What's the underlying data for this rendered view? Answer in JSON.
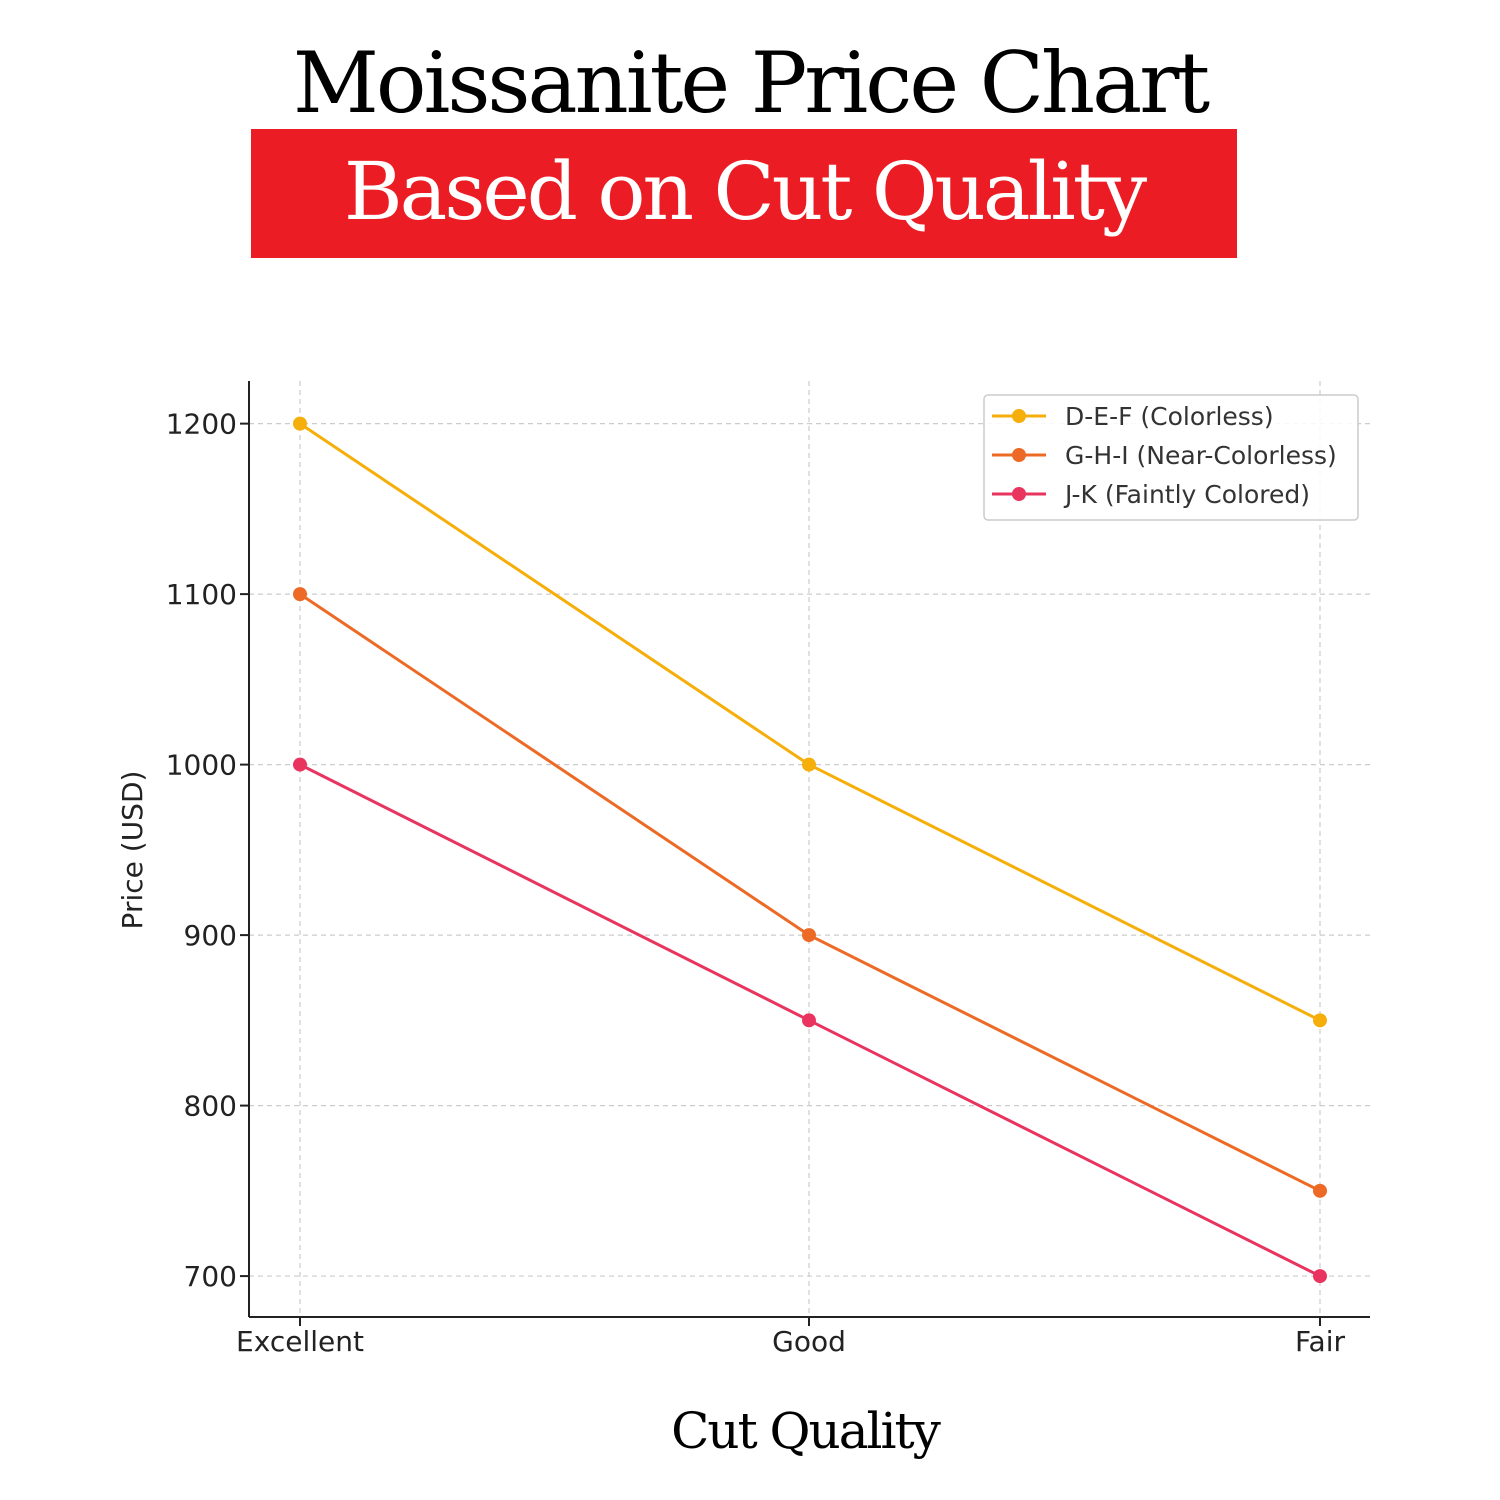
{
  "chart_data": {
    "type": "line",
    "title": "Moissanite Price Chart",
    "subtitle": "Based on Cut Quality",
    "xlabel": "Cut Quality",
    "ylabel": "Price (USD)",
    "categories": [
      "Excellent",
      "Good",
      "Fair"
    ],
    "yticks": [
      700,
      800,
      900,
      1000,
      1100,
      1200
    ],
    "ylim": [
      676,
      1225
    ],
    "grid": true,
    "legend_position": "top-right",
    "series": [
      {
        "name": "D-E-F (Colorless)",
        "values": [
          1200,
          1000,
          850
        ],
        "color": "#F5AE0A"
      },
      {
        "name": "G-H-I (Near-Colorless)",
        "values": [
          1100,
          900,
          750
        ],
        "color": "#EC6A26"
      },
      {
        "name": "J-K (Faintly Colored)",
        "values": [
          1000,
          850,
          700
        ],
        "color": "#E8345E"
      }
    ]
  }
}
